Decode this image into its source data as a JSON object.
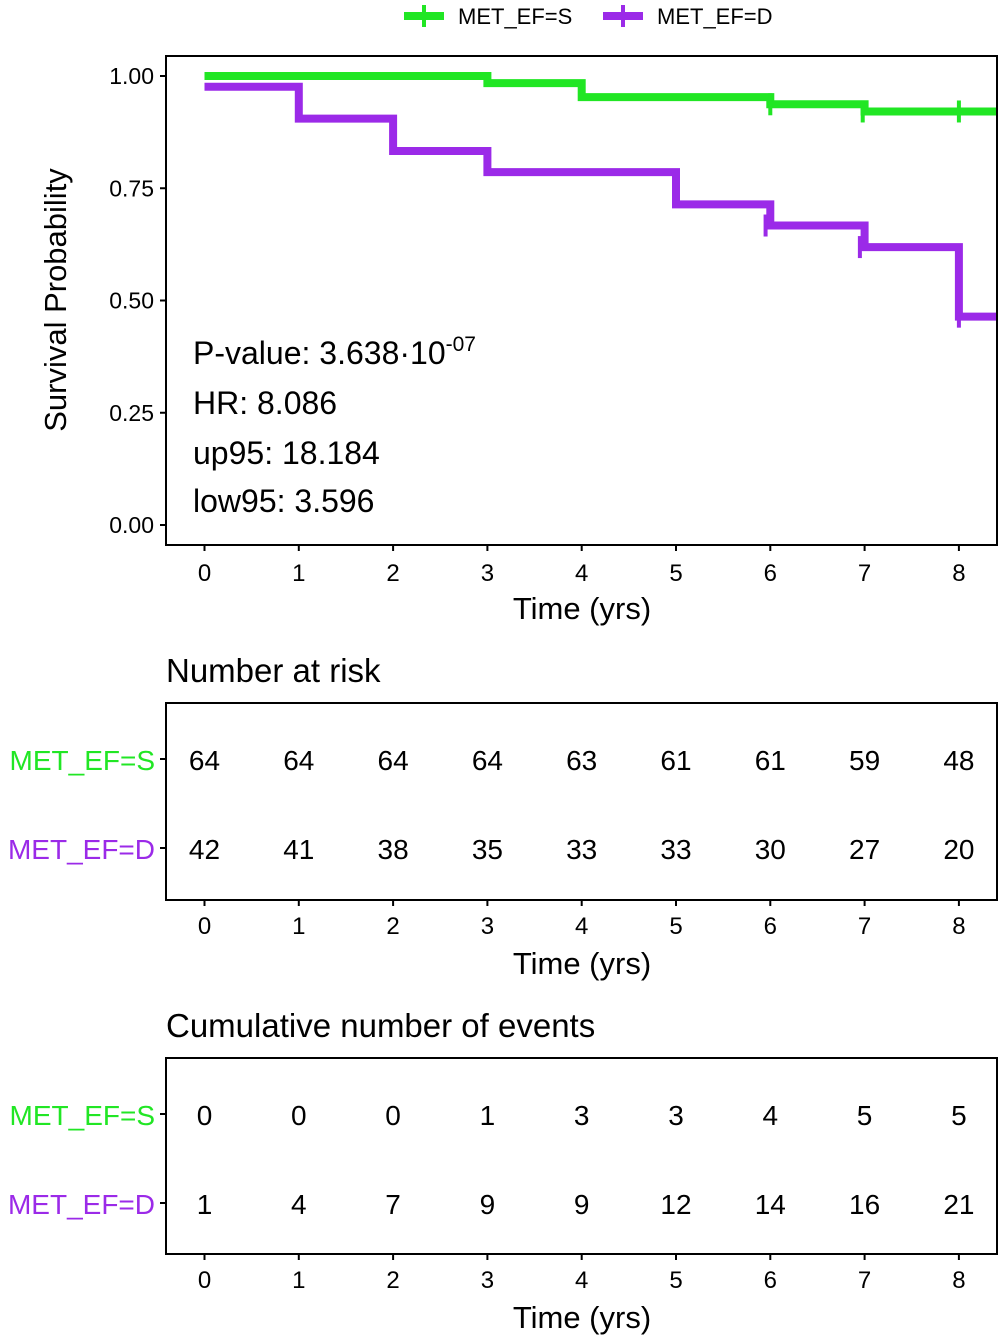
{
  "chart_data": [
    {
      "type": "line",
      "subtype": "kaplan-meier",
      "title": "",
      "xlabel": "Time (yrs)",
      "ylabel": "Survival Probability",
      "xlim": [
        0,
        8.4
      ],
      "ylim": [
        0,
        1.05
      ],
      "x_ticks": [
        0,
        1,
        2,
        3,
        4,
        5,
        6,
        7,
        8
      ],
      "y_ticks": [
        0.0,
        0.25,
        0.5,
        0.75,
        1.0
      ],
      "y_tick_labels": [
        "0.00",
        "0.25",
        "0.50",
        "0.75",
        "1.00"
      ],
      "legend_position": "top",
      "series": [
        {
          "name": "MET_EF=S",
          "color": "#21e624",
          "steps": [
            {
              "x": 0,
              "y": 1.0
            },
            {
              "x": 3,
              "y": 0.984
            },
            {
              "x": 4,
              "y": 0.953
            },
            {
              "x": 6,
              "y": 0.937
            },
            {
              "x": 7,
              "y": 0.921
            }
          ],
          "x_end": 8.4,
          "censor_marks": [
            {
              "x": 6.0,
              "y": 0.937
            },
            {
              "x": 6.98,
              "y": 0.921
            },
            {
              "x": 8.0,
              "y": 0.921
            }
          ]
        },
        {
          "name": "MET_EF=D",
          "color": "#9b2ae8",
          "steps": [
            {
              "x": 0,
              "y": 0.976
            },
            {
              "x": 1,
              "y": 0.905
            },
            {
              "x": 2,
              "y": 0.833
            },
            {
              "x": 3,
              "y": 0.786
            },
            {
              "x": 5,
              "y": 0.714
            },
            {
              "x": 6,
              "y": 0.667
            },
            {
              "x": 7,
              "y": 0.619
            },
            {
              "x": 8,
              "y": 0.464
            }
          ],
          "x_end": 8.4,
          "censor_marks": [
            {
              "x": 5.95,
              "y": 0.667
            },
            {
              "x": 6.95,
              "y": 0.619
            },
            {
              "x": 8.0,
              "y": 0.464
            }
          ]
        }
      ],
      "annotations": {
        "pvalue_prefix": "P-value: 3.638·10",
        "pvalue_exponent": "-07",
        "hr": "HR: 8.086",
        "up95": "up95: 18.184",
        "low95": "low95: 3.596"
      }
    },
    {
      "type": "table",
      "title": "Number at risk",
      "xlabel": "Time (yrs)",
      "x_ticks": [
        0,
        1,
        2,
        3,
        4,
        5,
        6,
        7,
        8
      ],
      "rows": [
        {
          "name": "MET_EF=S",
          "color": "#21e624",
          "values": [
            64,
            64,
            64,
            64,
            63,
            61,
            61,
            59,
            48
          ]
        },
        {
          "name": "MET_EF=D",
          "color": "#9b2ae8",
          "values": [
            42,
            41,
            38,
            35,
            33,
            33,
            30,
            27,
            20
          ]
        }
      ]
    },
    {
      "type": "table",
      "title": "Cumulative number of events",
      "xlabel": "Time (yrs)",
      "x_ticks": [
        0,
        1,
        2,
        3,
        4,
        5,
        6,
        7,
        8
      ],
      "rows": [
        {
          "name": "MET_EF=S",
          "color": "#21e624",
          "values": [
            0,
            0,
            0,
            1,
            3,
            3,
            4,
            5,
            5
          ]
        },
        {
          "name": "MET_EF=D",
          "color": "#9b2ae8",
          "values": [
            1,
            4,
            7,
            9,
            9,
            12,
            14,
            16,
            21
          ]
        }
      ]
    }
  ]
}
